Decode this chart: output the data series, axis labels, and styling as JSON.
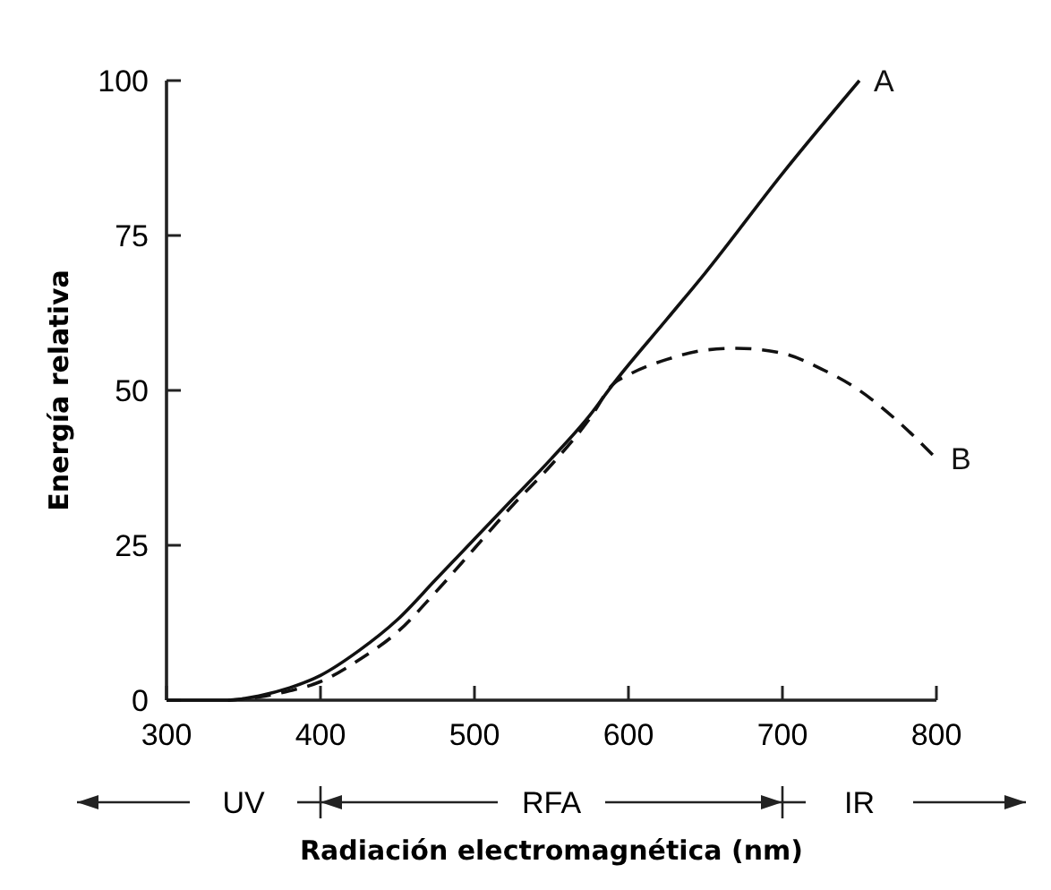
{
  "chart_data": {
    "type": "line",
    "xlabel": "Radiación electromagnética (nm)",
    "ylabel": "Energía relativa",
    "xlim": [
      300,
      800
    ],
    "xticks": [
      300,
      400,
      500,
      600,
      700,
      800
    ],
    "ylim": [
      0,
      100
    ],
    "yticks": [
      0,
      25,
      50,
      75,
      100
    ],
    "grid": false,
    "series": [
      {
        "name": "A",
        "color": "#111111",
        "line_style": "solid",
        "x": [
          300,
          340,
          360,
          380,
          400,
          425,
          450,
          475,
          500,
          525,
          550,
          575,
          590,
          625,
          650,
          700,
          750
        ],
        "values": [
          0,
          0,
          0.7,
          2,
          4,
          8,
          13,
          19.5,
          26,
          32.5,
          39,
          46,
          51,
          61.5,
          69,
          85,
          100
        ]
      },
      {
        "name": "B",
        "color": "#111111",
        "line_style": "dashed",
        "x": [
          340,
          360,
          380,
          400,
          425,
          450,
          475,
          500,
          525,
          550,
          575,
          590,
          600,
          625,
          650,
          670,
          700,
          725,
          750,
          775,
          800
        ],
        "values": [
          0,
          0.5,
          1.5,
          3,
          6.5,
          11,
          17.5,
          24.5,
          31.5,
          38,
          45.5,
          51,
          52.5,
          55,
          56.5,
          56.8,
          56,
          53.5,
          50,
          45,
          39
        ]
      }
    ],
    "annotations": [
      "UV",
      "RFA",
      "IR"
    ]
  }
}
